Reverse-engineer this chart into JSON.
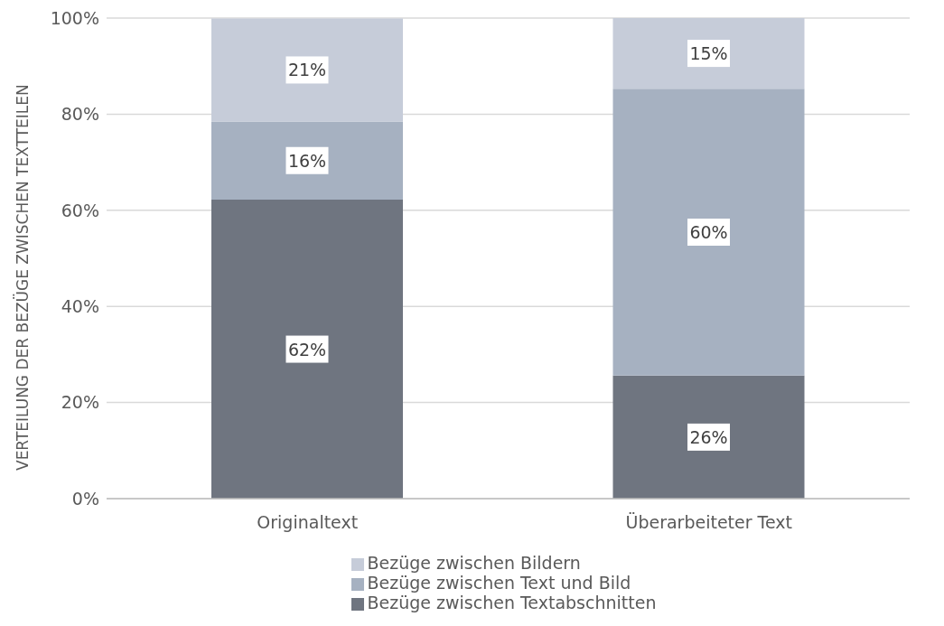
{
  "chart_data": {
    "type": "bar",
    "stacked": true,
    "ylabel": "VERTEILUNG DER BEZÜGE ZWISCHEN TEXTTEILEN",
    "categories": [
      "Originaltext",
      "Überarbeiteter Text"
    ],
    "series": [
      {
        "name": "Bezüge zwischen Textabschnitten",
        "color": "#6f7580",
        "values": [
          62.2,
          25.6
        ],
        "value_labels": [
          "62%",
          "26%"
        ]
      },
      {
        "name": "Bezüge zwischen Text und Bild",
        "color": "#a6b1c1",
        "values": [
          16.3,
          59.7
        ],
        "value_labels": [
          "16%",
          "60%"
        ]
      },
      {
        "name": "Bezüge zwischen Bildern",
        "color": "#c6ccd9",
        "values": [
          21.4,
          14.7
        ],
        "value_labels": [
          "21%",
          "15%"
        ]
      }
    ],
    "ylim": [
      0,
      100
    ],
    "yticks": [
      {
        "value": 0,
        "label": "0%"
      },
      {
        "value": 20,
        "label": "20%"
      },
      {
        "value": 40,
        "label": "40%"
      },
      {
        "value": 60,
        "label": "60%"
      },
      {
        "value": 80,
        "label": "80%"
      },
      {
        "value": 100,
        "label": "100%"
      }
    ],
    "grid": "y",
    "legend": "bottom"
  }
}
